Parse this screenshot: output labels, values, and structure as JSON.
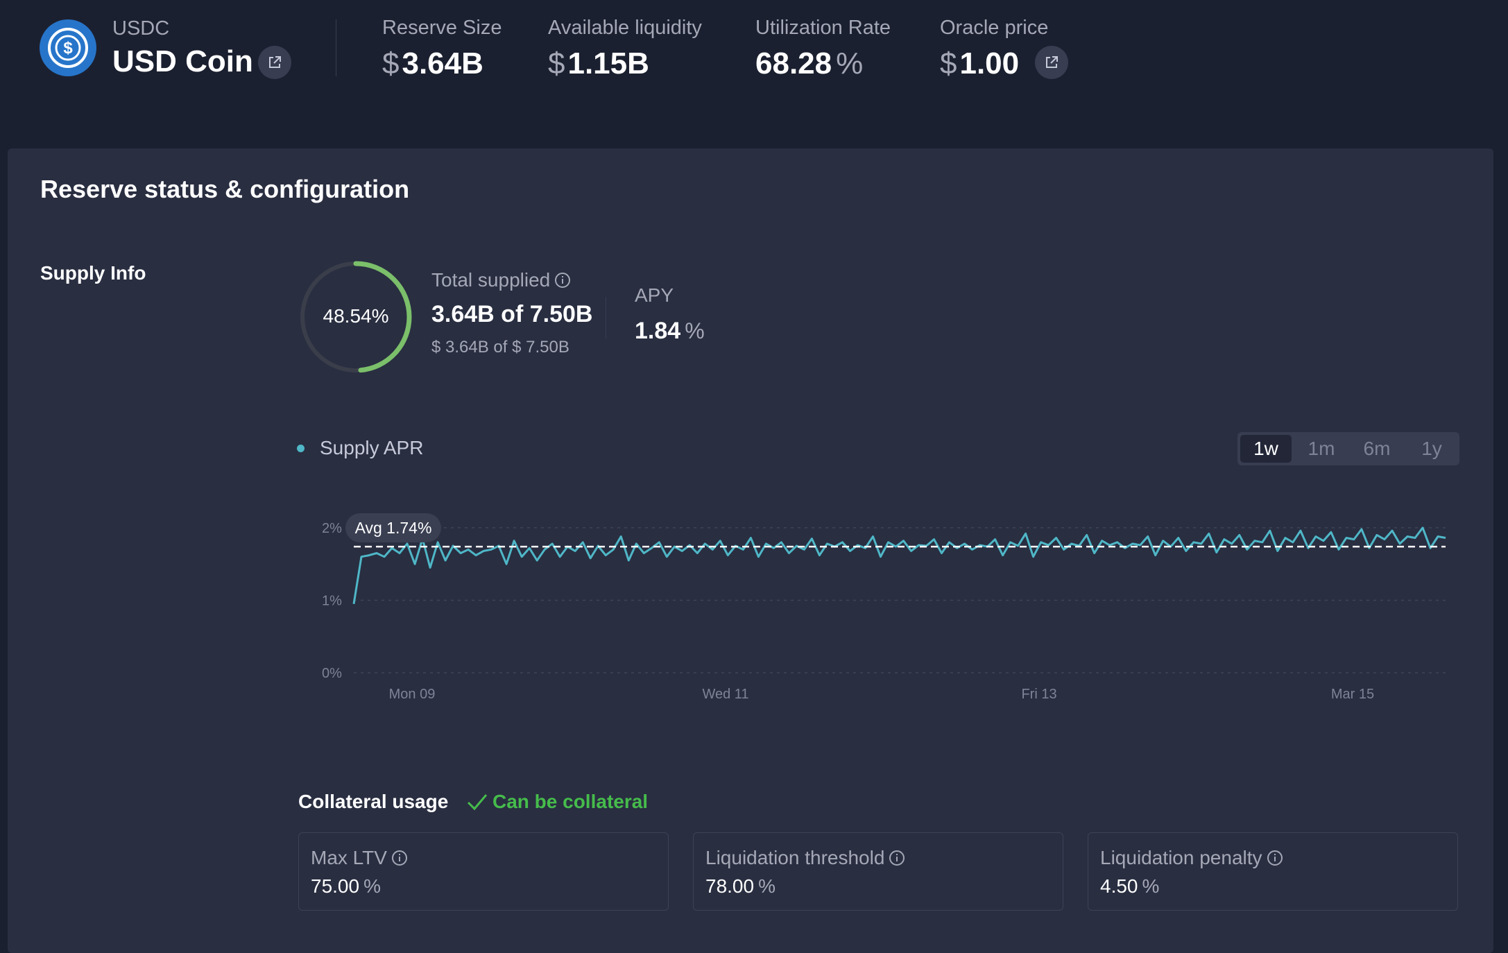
{
  "asset": {
    "symbol": "USDC",
    "name": "USD Coin",
    "brand_color": "#2775ca",
    "logo_icon": "usdc-logo-icon",
    "external_icon": "external-link-icon"
  },
  "stats": {
    "reserve_size": {
      "label": "Reserve Size",
      "symbol": "$",
      "value": "3.64B"
    },
    "available_liquidity": {
      "label": "Available liquidity",
      "symbol": "$",
      "value": "1.15B"
    },
    "utilization_rate": {
      "label": "Utilization Rate",
      "value": "68.28",
      "unit": "%"
    },
    "oracle_price": {
      "label": "Oracle price",
      "symbol": "$",
      "value": "1.00"
    }
  },
  "panel": {
    "title": "Reserve status & configuration"
  },
  "supply_info": {
    "section_label": "Supply Info",
    "ring_percent_text": "48.54%",
    "ring_fraction": 0.4854,
    "ring_color": "#7bbf6a",
    "total_supplied_label": "Total supplied",
    "total_supplied_value": "3.64B of 7.50B",
    "total_supplied_usd": "$ 3.64B of $ 7.50B",
    "apy_label": "APY",
    "apy_value": "1.84",
    "apy_unit": "%"
  },
  "chart_controls": {
    "legend_label": "Supply APR",
    "legend_color": "#4fb7c7",
    "timeframes": [
      "1w",
      "1m",
      "6m",
      "1y"
    ],
    "active_timeframe": "1w"
  },
  "chart_data": {
    "type": "line",
    "series": [
      {
        "name": "Supply APR",
        "color": "#4fb7c7",
        "values": [
          0.95,
          1.6,
          1.62,
          1.65,
          1.6,
          1.72,
          1.65,
          1.78,
          1.5,
          1.85,
          1.45,
          1.8,
          1.55,
          1.75,
          1.65,
          1.7,
          1.62,
          1.68,
          1.7,
          1.75,
          1.5,
          1.82,
          1.6,
          1.72,
          1.55,
          1.7,
          1.78,
          1.6,
          1.74,
          1.68,
          1.8,
          1.58,
          1.75,
          1.62,
          1.7,
          1.88,
          1.55,
          1.78,
          1.65,
          1.72,
          1.8,
          1.6,
          1.74,
          1.68,
          1.76,
          1.65,
          1.78,
          1.7,
          1.82,
          1.62,
          1.75,
          1.7,
          1.86,
          1.6,
          1.78,
          1.72,
          1.8,
          1.65,
          1.75,
          1.7,
          1.85,
          1.62,
          1.78,
          1.74,
          1.8,
          1.68,
          1.76,
          1.72,
          1.88,
          1.6,
          1.8,
          1.74,
          1.82,
          1.68,
          1.76,
          1.75,
          1.84,
          1.65,
          1.8,
          1.72,
          1.78,
          1.7,
          1.76,
          1.74,
          1.84,
          1.62,
          1.8,
          1.75,
          1.92,
          1.6,
          1.8,
          1.76,
          1.86,
          1.7,
          1.78,
          1.75,
          1.9,
          1.65,
          1.82,
          1.76,
          1.8,
          1.72,
          1.78,
          1.76,
          1.88,
          1.62,
          1.82,
          1.74,
          1.86,
          1.68,
          1.8,
          1.78,
          1.92,
          1.66,
          1.84,
          1.78,
          1.9,
          1.7,
          1.82,
          1.8,
          1.96,
          1.68,
          1.86,
          1.8,
          1.96,
          1.72,
          1.88,
          1.82,
          1.94,
          1.7,
          1.86,
          1.84,
          1.98,
          1.72,
          1.9,
          1.84,
          1.96,
          1.78,
          1.88,
          1.86,
          2.0,
          1.72,
          1.88,
          1.86
        ]
      }
    ],
    "x_tick_labels": [
      "Mon 09",
      "Wed 11",
      "Fri 13",
      "Mar 15"
    ],
    "y_tick_labels": [
      "2%",
      "1%",
      "0%"
    ],
    "ylim": [
      0,
      2.2
    ],
    "average_value": 1.74,
    "average_label": "Avg 1.74%",
    "grid": true
  },
  "collateral": {
    "label": "Collateral usage",
    "status": "Can be collateral",
    "status_color": "#46bc4b",
    "cards": [
      {
        "label": "Max LTV",
        "value": "75.00",
        "unit": "%"
      },
      {
        "label": "Liquidation threshold",
        "value": "78.00",
        "unit": "%"
      },
      {
        "label": "Liquidation penalty",
        "value": "4.50",
        "unit": "%"
      }
    ]
  }
}
